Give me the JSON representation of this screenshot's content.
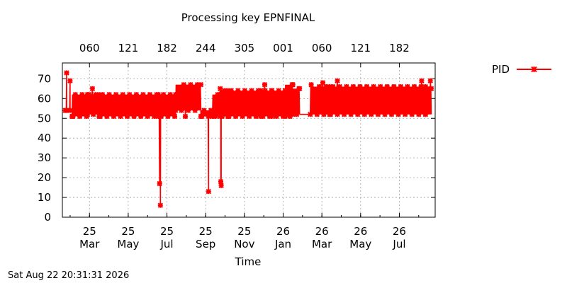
{
  "chart_data": {
    "type": "line",
    "title": "Processing key EPNFINAL",
    "xlabel": "Time",
    "ylabel": "",
    "ylim": [
      0,
      78
    ],
    "yticks": [
      0,
      10,
      20,
      30,
      40,
      50,
      60,
      70
    ],
    "x_unit": "month",
    "xlim": [
      1.6,
      20.85
    ],
    "x_ticks_bottom": [
      {
        "x": 3,
        "label_top": "25",
        "label_bottom": "Mar"
      },
      {
        "x": 5,
        "label_top": "25",
        "label_bottom": "May"
      },
      {
        "x": 7,
        "label_top": "25",
        "label_bottom": "Jul"
      },
      {
        "x": 9,
        "label_top": "25",
        "label_bottom": "Sep"
      },
      {
        "x": 11,
        "label_top": "25",
        "label_bottom": "Nov"
      },
      {
        "x": 13,
        "label_top": "26",
        "label_bottom": "Jan"
      },
      {
        "x": 15,
        "label_top": "26",
        "label_bottom": "Mar"
      },
      {
        "x": 17,
        "label_top": "26",
        "label_bottom": "May"
      },
      {
        "x": 19,
        "label_top": "26",
        "label_bottom": "Jul"
      }
    ],
    "x_ticks_top": [
      {
        "x": 3,
        "label": "060"
      },
      {
        "x": 5,
        "label": "121"
      },
      {
        "x": 7,
        "label": "182"
      },
      {
        "x": 9,
        "label": "244"
      },
      {
        "x": 11,
        "label": "305"
      },
      {
        "x": 13,
        "label": "001"
      },
      {
        "x": 15,
        "label": "060"
      },
      {
        "x": 17,
        "label": "121"
      },
      {
        "x": 19,
        "label": "182"
      }
    ],
    "grid": true,
    "legend_position": "top-right",
    "series": [
      {
        "name": "PID",
        "color": "#ff0000",
        "marker": "x-star",
        "segments": [
          {
            "from": 1.75,
            "to": 2.1,
            "low": 54,
            "high": 54,
            "spikes": [
              {
                "x": 1.82,
                "y": 73
              },
              {
                "x": 2.0,
                "y": 69
              }
            ]
          },
          {
            "from": 2.1,
            "to": 2.9,
            "low": 51,
            "high": 62
          },
          {
            "from": 2.9,
            "to": 3.5,
            "low": 52,
            "high": 62,
            "spikes": [
              {
                "x": 3.15,
                "y": 65
              }
            ]
          },
          {
            "from": 3.5,
            "to": 6.55,
            "low": 51,
            "high": 62
          },
          {
            "from": 6.55,
            "to": 7.45,
            "low": 51,
            "high": 62,
            "dips": [
              {
                "x": 6.62,
                "y": 17
              },
              {
                "x": 6.66,
                "y": 6
              }
            ]
          },
          {
            "from": 7.45,
            "to": 8.75,
            "low": 54,
            "high": 67,
            "spikes": [
              {
                "x": 7.95,
                "y": 51
              }
            ]
          },
          {
            "from": 8.75,
            "to": 9.35,
            "low": 51,
            "high": 54,
            "dips": [
              {
                "x": 9.15,
                "y": 13
              }
            ]
          },
          {
            "from": 9.35,
            "to": 9.75,
            "low": 51,
            "high": 62
          },
          {
            "from": 9.75,
            "to": 10.15,
            "low": 51,
            "high": 64,
            "dips": [
              {
                "x": 9.78,
                "y": 18
              },
              {
                "x": 9.8,
                "y": 16
              }
            ],
            "spikes": [
              {
                "x": 9.75,
                "y": 65
              }
            ]
          },
          {
            "from": 10.15,
            "to": 11.85,
            "low": 51,
            "high": 64
          },
          {
            "from": 11.85,
            "to": 12.4,
            "low": 51,
            "high": 64,
            "spikes": [
              {
                "x": 12.05,
                "y": 67
              }
            ]
          },
          {
            "from": 12.4,
            "to": 13.1,
            "low": 51,
            "high": 64
          },
          {
            "from": 13.1,
            "to": 13.5,
            "low": 51,
            "high": 67
          },
          {
            "from": 13.5,
            "to": 13.85,
            "low": 52,
            "high": 65
          },
          {
            "from": 14.4,
            "to": 15.4,
            "low": 52,
            "high": 66,
            "spikes": [
              {
                "x": 14.45,
                "y": 67
              },
              {
                "x": 15.05,
                "y": 68
              }
            ]
          },
          {
            "from": 15.4,
            "to": 20.35,
            "low": 52,
            "high": 66,
            "spikes": [
              {
                "x": 15.8,
                "y": 69
              },
              {
                "x": 20.15,
                "y": 69
              }
            ]
          },
          {
            "from": 20.35,
            "to": 20.65,
            "low": 52,
            "high": 65,
            "spikes": [
              {
                "x": 20.6,
                "y": 69
              }
            ]
          }
        ]
      }
    ]
  },
  "footer": {
    "timestamp": "Sat Aug 22 20:31:31 2026"
  }
}
